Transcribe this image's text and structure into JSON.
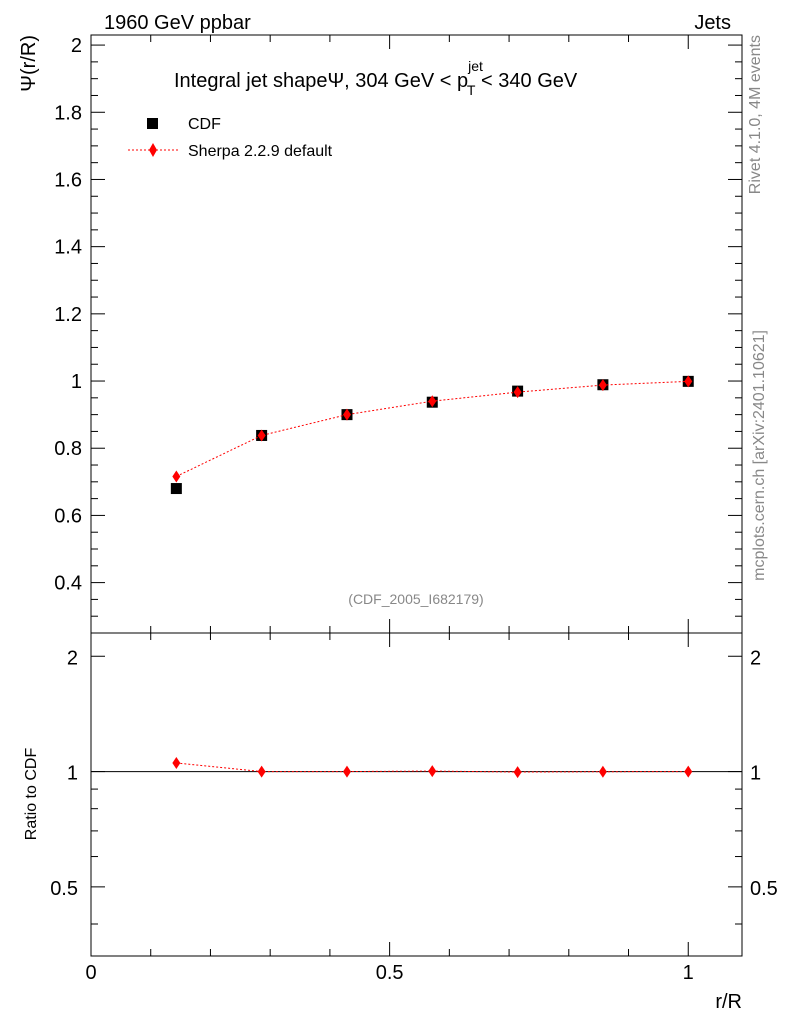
{
  "header": {
    "left": "1960 GeV ppbar",
    "right": "Jets"
  },
  "side": {
    "rivet": "Rivet 4.1.0,  4M events",
    "mcplots": "mcplots.cern.ch [arXiv:2401.10621]"
  },
  "chart_data": [
    {
      "type": "scatter",
      "title": {
        "main": "Integral jet shapeΨ, 304 GeV < p",
        "sup": "jet",
        "sub": "T",
        "tail": " < 340 GeV"
      },
      "ylabel": "Ψ(r/R)",
      "xlim": [
        0,
        1.09
      ],
      "ylim": [
        0.25,
        2.03
      ],
      "yticks": [
        0.4,
        0.6,
        0.8,
        1,
        1.2,
        1.4,
        1.6,
        1.8,
        2
      ],
      "ytick_labels": [
        "0.4",
        "0.6",
        "0.8",
        "1",
        "1.2",
        "1.4",
        "1.6",
        "1.8",
        "2"
      ],
      "watermark": "(CDF_2005_I682179)",
      "legend": {
        "placement": "top-left",
        "entries": [
          "CDF",
          "Sherpa 2.2.9 default"
        ]
      },
      "x": [
        0.1429,
        0.2857,
        0.4286,
        0.5714,
        0.7143,
        0.8571,
        1.0
      ],
      "series": [
        {
          "name": "CDF",
          "marker": "square",
          "color": "#000000",
          "values": [
            0.68,
            0.838,
            0.9,
            0.937,
            0.97,
            0.989,
            0.999
          ]
        },
        {
          "name": "Sherpa 2.2.9 default",
          "marker": "diamond",
          "color": "#ff0000",
          "line": "dotted",
          "values": [
            0.716,
            0.838,
            0.9,
            0.94,
            0.967,
            0.988,
            0.999
          ]
        }
      ]
    },
    {
      "type": "line",
      "ylabel": "Ratio to CDF",
      "xlabel": "r/R",
      "xlim": [
        0,
        1.09
      ],
      "ylim": [
        0.33,
        2.3
      ],
      "yscale": "log",
      "yticks": [
        0.5,
        1,
        2
      ],
      "ytick_labels": [
        "0.5",
        "1",
        "2"
      ],
      "xticks": [
        0,
        0.5,
        1
      ],
      "xtick_labels": [
        "0",
        "0.5",
        "1"
      ],
      "reference_line": 1,
      "x": [
        0.1429,
        0.2857,
        0.4286,
        0.5714,
        0.7143,
        0.8571,
        1.0
      ],
      "series": [
        {
          "name": "Sherpa 2.2.9 default",
          "marker": "diamond",
          "color": "#ff0000",
          "line": "dotted",
          "values": [
            1.053,
            1.0,
            1.0,
            1.003,
            0.997,
            0.999,
            1.0
          ]
        }
      ]
    }
  ]
}
